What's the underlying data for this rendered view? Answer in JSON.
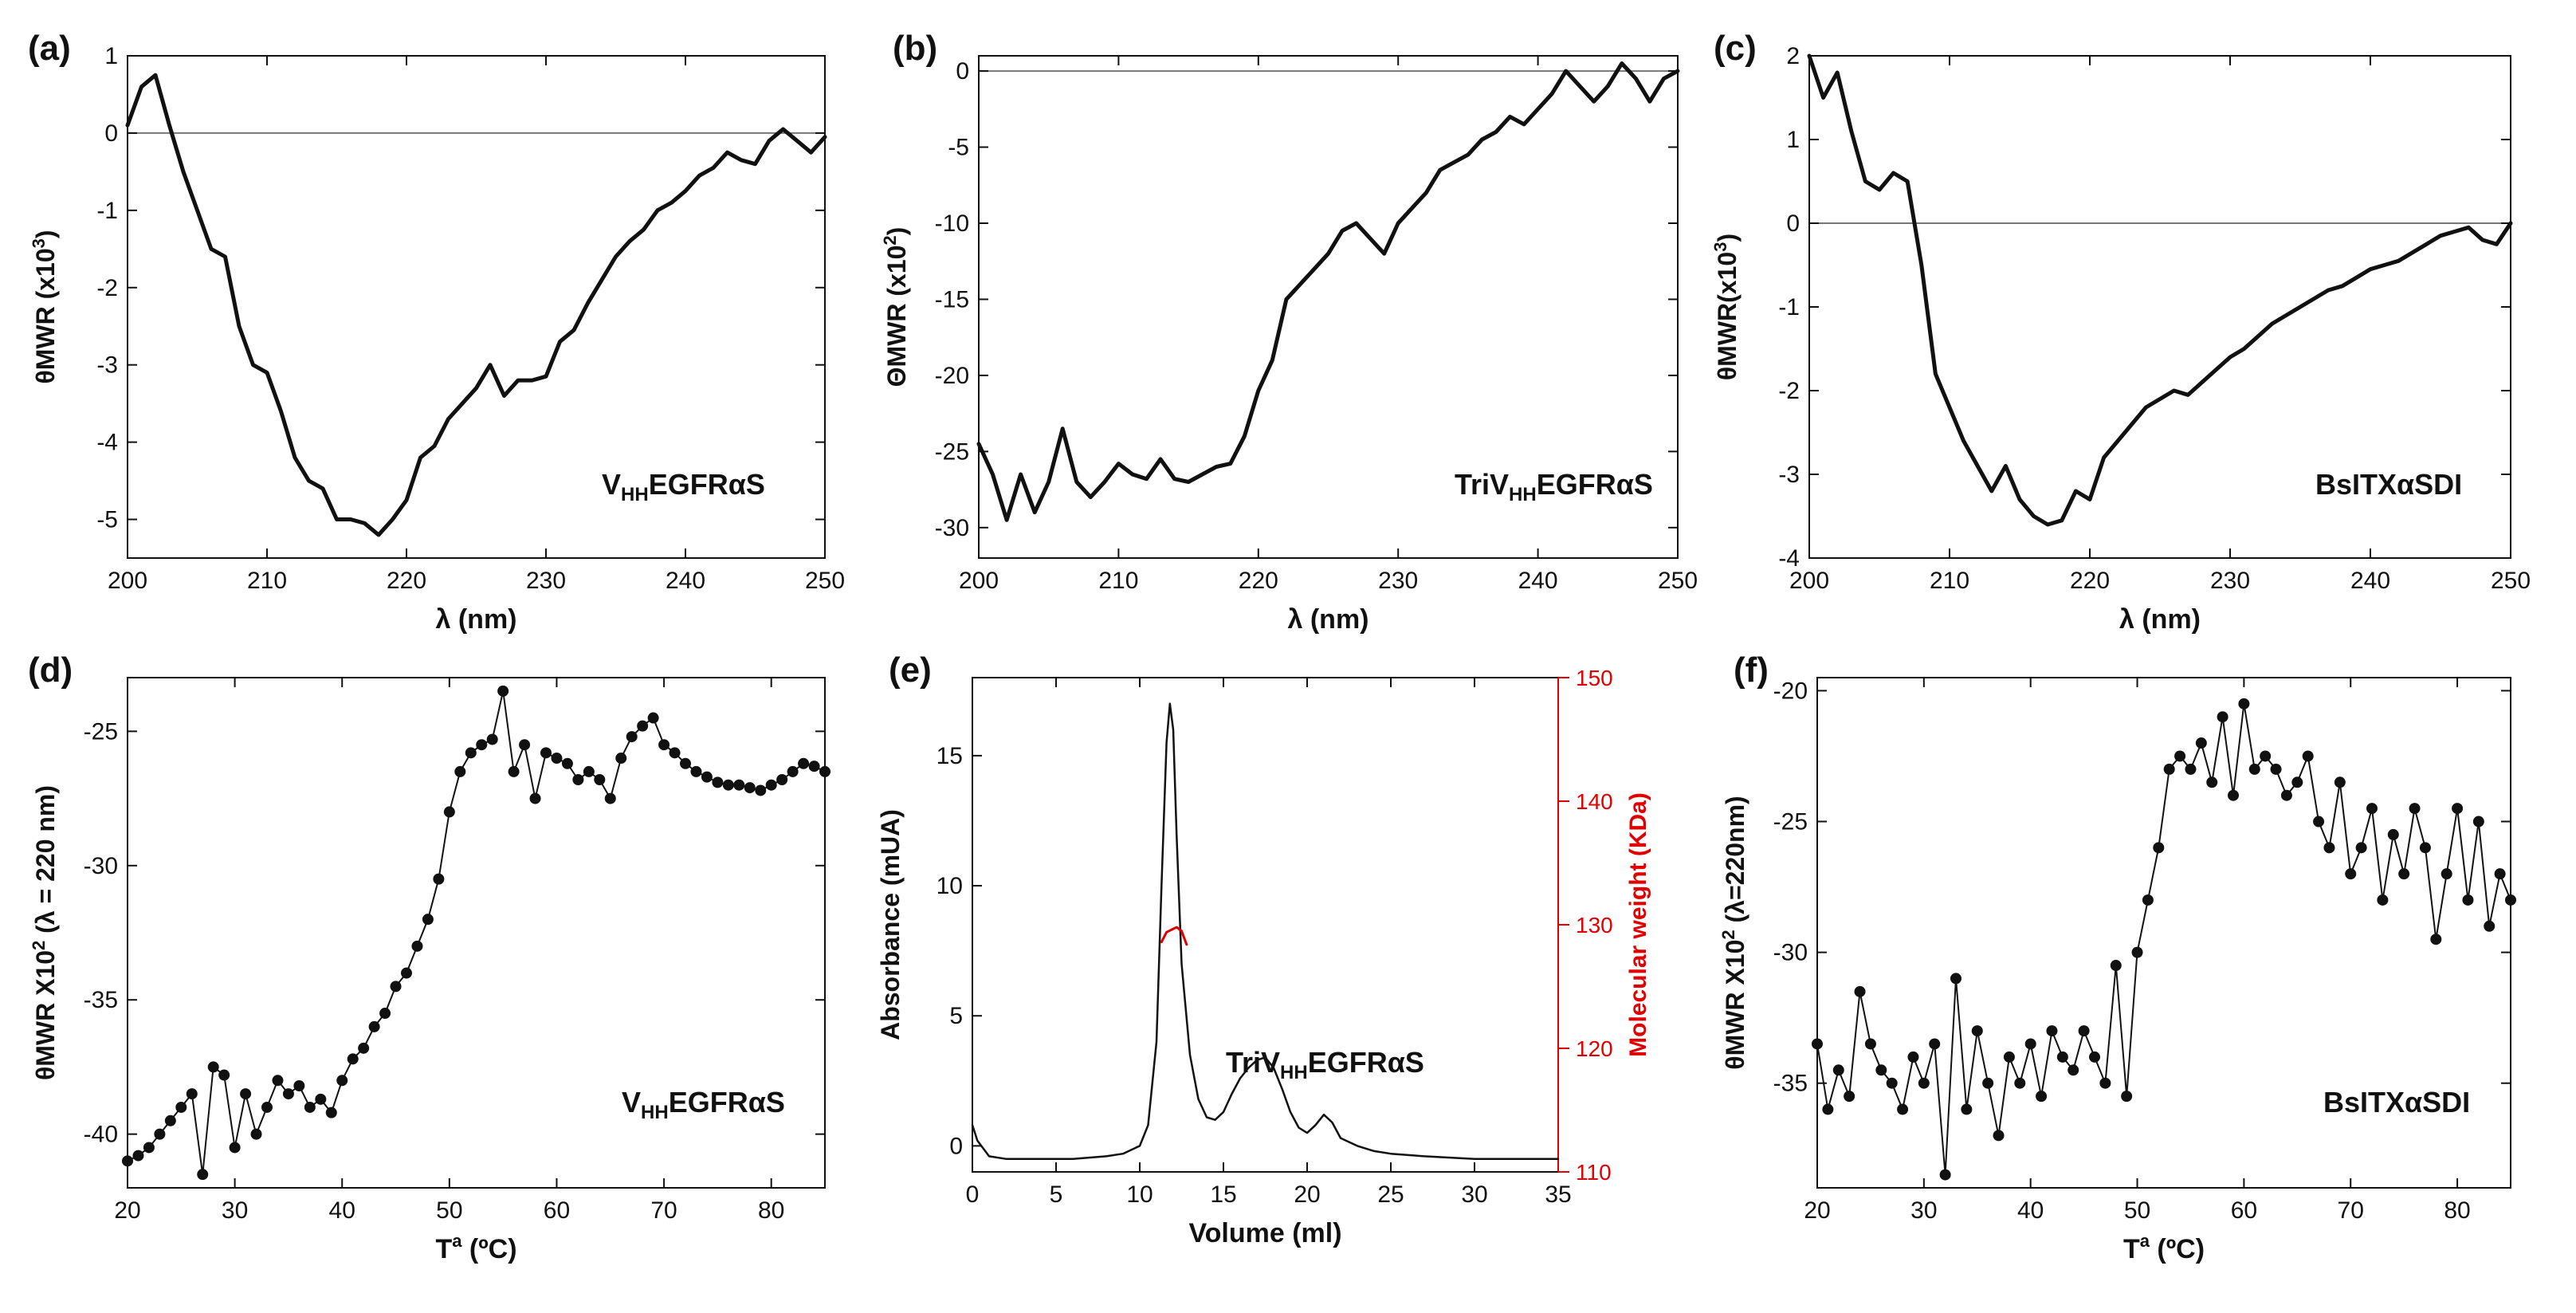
{
  "colors": {
    "axis": "#111111",
    "series": "#111111",
    "secondary": "#e00000",
    "zero_line": "#777777"
  },
  "chart_data": [
    {
      "id": "a",
      "type": "line",
      "panel_label": "(a)",
      "xlabel": "λ (nm)",
      "ylabel": "θMWR (x10",
      "ylabel_sup": "3",
      "ylabel_end": ")",
      "annotation_main": "V",
      "annotation_sub": "HH",
      "annotation_rest": "EGFRαS",
      "xlim": [
        200,
        250
      ],
      "ylim": [
        -5.5,
        1
      ],
      "zero_line": true,
      "xticks": [
        200,
        210,
        220,
        230,
        240,
        250
      ],
      "yticks": [
        -5,
        -4,
        -3,
        -2,
        -1,
        0,
        1
      ],
      "series": [
        {
          "name": "VHHEGFRαS",
          "style": "line",
          "x": [
            200,
            201,
            202,
            203,
            204,
            205,
            206,
            207,
            208,
            209,
            210,
            211,
            212,
            213,
            214,
            215,
            216,
            217,
            218,
            219,
            220,
            221,
            222,
            223,
            224,
            225,
            226,
            227,
            228,
            229,
            230,
            231,
            232,
            233,
            234,
            235,
            236,
            237,
            238,
            239,
            240,
            241,
            242,
            243,
            244,
            245,
            246,
            247,
            248,
            249,
            250
          ],
          "y": [
            0.1,
            0.6,
            0.75,
            0.1,
            -0.5,
            -1.0,
            -1.5,
            -1.6,
            -2.5,
            -3.0,
            -3.1,
            -3.6,
            -4.2,
            -4.5,
            -4.6,
            -5.0,
            -5.0,
            -5.05,
            -5.2,
            -5.0,
            -4.75,
            -4.2,
            -4.05,
            -3.7,
            -3.5,
            -3.3,
            -3.0,
            -3.4,
            -3.2,
            -3.2,
            -3.15,
            -2.7,
            -2.55,
            -2.2,
            -1.9,
            -1.6,
            -1.4,
            -1.25,
            -1.0,
            -0.9,
            -0.75,
            -0.55,
            -0.45,
            -0.25,
            -0.35,
            -0.4,
            -0.1,
            0.05,
            -0.1,
            -0.25,
            -0.05
          ]
        }
      ]
    },
    {
      "id": "b",
      "type": "line",
      "panel_label": "(b)",
      "xlabel": "λ (nm)",
      "ylabel": "ΘMWR (x10",
      "ylabel_sup": "2",
      "ylabel_end": ")",
      "annotation_main": "TriV",
      "annotation_sub": "HH",
      "annotation_rest": "EGFRαS",
      "xlim": [
        200,
        250
      ],
      "ylim": [
        -32,
        1
      ],
      "zero_line": true,
      "xticks": [
        200,
        210,
        220,
        230,
        240,
        250
      ],
      "yticks": [
        -30,
        -25,
        -20,
        -15,
        -10,
        -5,
        0
      ],
      "series": [
        {
          "name": "TriVHHEGFRαS",
          "style": "line",
          "x": [
            200,
            201,
            202,
            203,
            204,
            205,
            206,
            207,
            208,
            209,
            210,
            211,
            212,
            213,
            214,
            215,
            216,
            217,
            218,
            219,
            220,
            221,
            222,
            223,
            224,
            225,
            226,
            227,
            228,
            229,
            230,
            231,
            232,
            233,
            234,
            235,
            236,
            237,
            238,
            239,
            240,
            241,
            242,
            243,
            244,
            245,
            246,
            247,
            248,
            249,
            250
          ],
          "y": [
            -24.5,
            -26.5,
            -29.5,
            -26.5,
            -29,
            -27,
            -23.5,
            -27,
            -28,
            -27,
            -25.8,
            -26.5,
            -26.8,
            -25.5,
            -26.8,
            -27,
            -26.5,
            -26,
            -25.8,
            -24,
            -21,
            -19,
            -15,
            -14,
            -13,
            -12,
            -10.5,
            -10,
            -11,
            -12,
            -10,
            -9,
            -8,
            -6.5,
            -6,
            -5.5,
            -4.5,
            -4,
            -3,
            -3.5,
            -2.5,
            -1.5,
            0,
            -1,
            -2,
            -1,
            0.5,
            -0.5,
            -2,
            -0.5,
            0
          ]
        }
      ]
    },
    {
      "id": "c",
      "type": "line",
      "panel_label": "(c)",
      "xlabel": "λ (nm)",
      "ylabel": "θMWR(x10",
      "ylabel_sup": "3",
      "ylabel_end": ")",
      "annotation_main": "BsITXαSDI",
      "annotation_sub": "",
      "annotation_rest": "",
      "xlim": [
        200,
        250
      ],
      "ylim": [
        -4,
        2
      ],
      "zero_line": true,
      "xticks": [
        200,
        210,
        220,
        230,
        240,
        250
      ],
      "yticks": [
        -4,
        -3,
        -2,
        -1,
        0,
        1,
        2
      ],
      "series": [
        {
          "name": "BsITXαSDI",
          "style": "line",
          "x": [
            200,
            201,
            202,
            203,
            204,
            205,
            206,
            207,
            208,
            209,
            210,
            211,
            212,
            213,
            214,
            215,
            216,
            217,
            218,
            219,
            220,
            221,
            222,
            223,
            224,
            225,
            226,
            227,
            228,
            229,
            230,
            231,
            232,
            233,
            234,
            235,
            236,
            237,
            238,
            239,
            240,
            241,
            242,
            243,
            244,
            245,
            246,
            247,
            248,
            249,
            250
          ],
          "y": [
            2,
            1.5,
            1.8,
            1.1,
            0.5,
            0.4,
            0.6,
            0.5,
            -0.5,
            -1.8,
            -2.2,
            -2.6,
            -2.9,
            -3.2,
            -2.9,
            -3.3,
            -3.5,
            -3.6,
            -3.55,
            -3.2,
            -3.3,
            -2.8,
            -2.6,
            -2.4,
            -2.2,
            -2.1,
            -2.0,
            -2.05,
            -1.9,
            -1.75,
            -1.6,
            -1.5,
            -1.35,
            -1.2,
            -1.1,
            -1.0,
            -0.9,
            -0.8,
            -0.75,
            -0.65,
            -0.55,
            -0.5,
            -0.45,
            -0.35,
            -0.25,
            -0.15,
            -0.1,
            -0.05,
            -0.2,
            -0.25,
            0
          ]
        }
      ]
    },
    {
      "id": "d",
      "type": "scatter",
      "panel_label": "(d)",
      "xlabel": "T",
      "xlabel_sup": "a",
      "xlabel_end": " (ºC)",
      "ylabel": "θMWR X10",
      "ylabel_sup": "2",
      "ylabel_end": " (λ = 220 nm)",
      "annotation_main": "V",
      "annotation_sub": "HH",
      "annotation_rest": "EGFRαS",
      "xlim": [
        20,
        85
      ],
      "ylim": [
        -42,
        -23
      ],
      "zero_line": false,
      "xticks": [
        20,
        30,
        40,
        50,
        60,
        70,
        80
      ],
      "yticks": [
        -40,
        -35,
        -30,
        -25
      ],
      "series": [
        {
          "name": "VHHEGFRαS melting",
          "style": "dotline",
          "x": [
            20,
            21,
            22,
            23,
            24,
            25,
            26,
            27,
            28,
            29,
            30,
            31,
            32,
            33,
            34,
            35,
            36,
            37,
            38,
            39,
            40,
            41,
            42,
            43,
            44,
            45,
            46,
            47,
            48,
            49,
            50,
            51,
            52,
            53,
            54,
            55,
            56,
            57,
            58,
            59,
            60,
            61,
            62,
            63,
            64,
            65,
            66,
            67,
            68,
            69,
            70,
            71,
            72,
            73,
            74,
            75,
            76,
            77,
            78,
            79,
            80,
            81,
            82,
            83,
            84,
            85
          ],
          "y": [
            -41,
            -40.8,
            -40.5,
            -40,
            -39.5,
            -39,
            -38.5,
            -41.5,
            -37.5,
            -37.8,
            -40.5,
            -38.5,
            -40,
            -39,
            -38,
            -38.5,
            -38.2,
            -39,
            -38.7,
            -39.2,
            -38,
            -37.2,
            -36.8,
            -36,
            -35.5,
            -34.5,
            -34,
            -33,
            -32,
            -30.5,
            -28,
            -26.5,
            -25.8,
            -25.5,
            -25.3,
            -23.5,
            -26.5,
            -25.5,
            -27.5,
            -25.8,
            -26,
            -26.2,
            -26.8,
            -26.5,
            -26.8,
            -27.5,
            -26,
            -25.2,
            -24.8,
            -24.5,
            -25.5,
            -25.8,
            -26.2,
            -26.5,
            -26.7,
            -26.9,
            -27,
            -27,
            -27.1,
            -27.2,
            -27,
            -26.8,
            -26.5,
            -26.2,
            -26.3,
            -26.5
          ]
        }
      ]
    },
    {
      "id": "e",
      "type": "line",
      "panel_label": "(e)",
      "xlabel": "Volume (ml)",
      "ylabel": "Absorbance (mUA)",
      "y2label": "Molecular weight (KDa)",
      "annotation_main": "TriV",
      "annotation_sub": "HH",
      "annotation_rest": "EGFRαS",
      "xlim": [
        0,
        35
      ],
      "ylim": [
        -1,
        18
      ],
      "y2lim": [
        110,
        150
      ],
      "zero_line": false,
      "xticks": [
        0,
        5,
        10,
        15,
        20,
        25,
        30,
        35
      ],
      "yticks": [
        0,
        5,
        10,
        15
      ],
      "y2ticks": [
        110,
        120,
        130,
        140,
        150
      ],
      "series": [
        {
          "name": "Absorbance",
          "style": "thin",
          "axis": "y",
          "x": [
            0,
            0.3,
            1,
            2,
            4,
            6,
            8,
            9,
            10,
            10.5,
            11,
            11.3,
            11.6,
            11.8,
            12,
            12.2,
            12.5,
            13,
            13.5,
            14,
            14.5,
            15,
            15.5,
            16,
            16.5,
            17,
            17.5,
            18,
            18.5,
            19,
            19.5,
            20,
            20.5,
            21,
            21.5,
            22,
            23,
            24,
            25,
            27,
            30,
            35
          ],
          "y": [
            0.8,
            0.2,
            -0.4,
            -0.5,
            -0.5,
            -0.5,
            -0.4,
            -0.3,
            0,
            0.8,
            4,
            10,
            15.5,
            17,
            16,
            12,
            7,
            3.5,
            1.8,
            1.1,
            1,
            1.3,
            2,
            2.6,
            3,
            3.3,
            3.4,
            3,
            2.2,
            1.3,
            0.7,
            0.5,
            0.8,
            1.2,
            0.9,
            0.3,
            0,
            -0.2,
            -0.3,
            -0.4,
            -0.5,
            -0.5
          ]
        },
        {
          "name": "Molecular weight",
          "style": "red",
          "axis": "y2",
          "x": [
            11.3,
            11.6,
            11.9,
            12.2,
            12.5,
            12.8
          ],
          "y": [
            128.6,
            129.4,
            129.6,
            129.8,
            129.5,
            128.4
          ]
        }
      ]
    },
    {
      "id": "f",
      "type": "scatter",
      "panel_label": "(f)",
      "xlabel": "T",
      "xlabel_sup": "a",
      "xlabel_end": " (ºC)",
      "ylabel": "θMWR X10",
      "ylabel_sup": "2",
      "ylabel_end": " (λ=220nm)",
      "annotation_main": "BsITXαSDI",
      "annotation_sub": "",
      "annotation_rest": "",
      "xlim": [
        20,
        85
      ],
      "ylim": [
        -39,
        -19.5
      ],
      "zero_line": false,
      "xticks": [
        20,
        30,
        40,
        50,
        60,
        70,
        80
      ],
      "yticks": [
        -35,
        -30,
        -25,
        -20
      ],
      "series": [
        {
          "name": "BsITXαSDI melting",
          "style": "dotline",
          "x": [
            20,
            21,
            22,
            23,
            24,
            25,
            26,
            27,
            28,
            29,
            30,
            31,
            32,
            33,
            34,
            35,
            36,
            37,
            38,
            39,
            40,
            41,
            42,
            43,
            44,
            45,
            46,
            47,
            48,
            49,
            50,
            51,
            52,
            53,
            54,
            55,
            56,
            57,
            58,
            59,
            60,
            61,
            62,
            63,
            64,
            65,
            66,
            67,
            68,
            69,
            70,
            71,
            72,
            73,
            74,
            75,
            76,
            77,
            78,
            79,
            80,
            81,
            82,
            83,
            84,
            85
          ],
          "y": [
            -33.5,
            -36,
            -34.5,
            -35.5,
            -31.5,
            -33.5,
            -34.5,
            -35,
            -36,
            -34,
            -35,
            -33.5,
            -38.5,
            -31,
            -36,
            -33,
            -35,
            -37,
            -34,
            -35,
            -33.5,
            -35.5,
            -33,
            -34,
            -34.5,
            -33,
            -34,
            -35,
            -30.5,
            -35.5,
            -30,
            -28,
            -26,
            -23,
            -22.5,
            -23,
            -22,
            -23.5,
            -21,
            -24,
            -20.5,
            -23,
            -22.5,
            -23,
            -24,
            -23.5,
            -22.5,
            -25,
            -26,
            -23.5,
            -27,
            -26,
            -24.5,
            -28,
            -25.5,
            -27,
            -24.5,
            -26,
            -29.5,
            -27,
            -24.5,
            -28,
            -25,
            -29,
            -27,
            -28
          ]
        }
      ]
    }
  ]
}
